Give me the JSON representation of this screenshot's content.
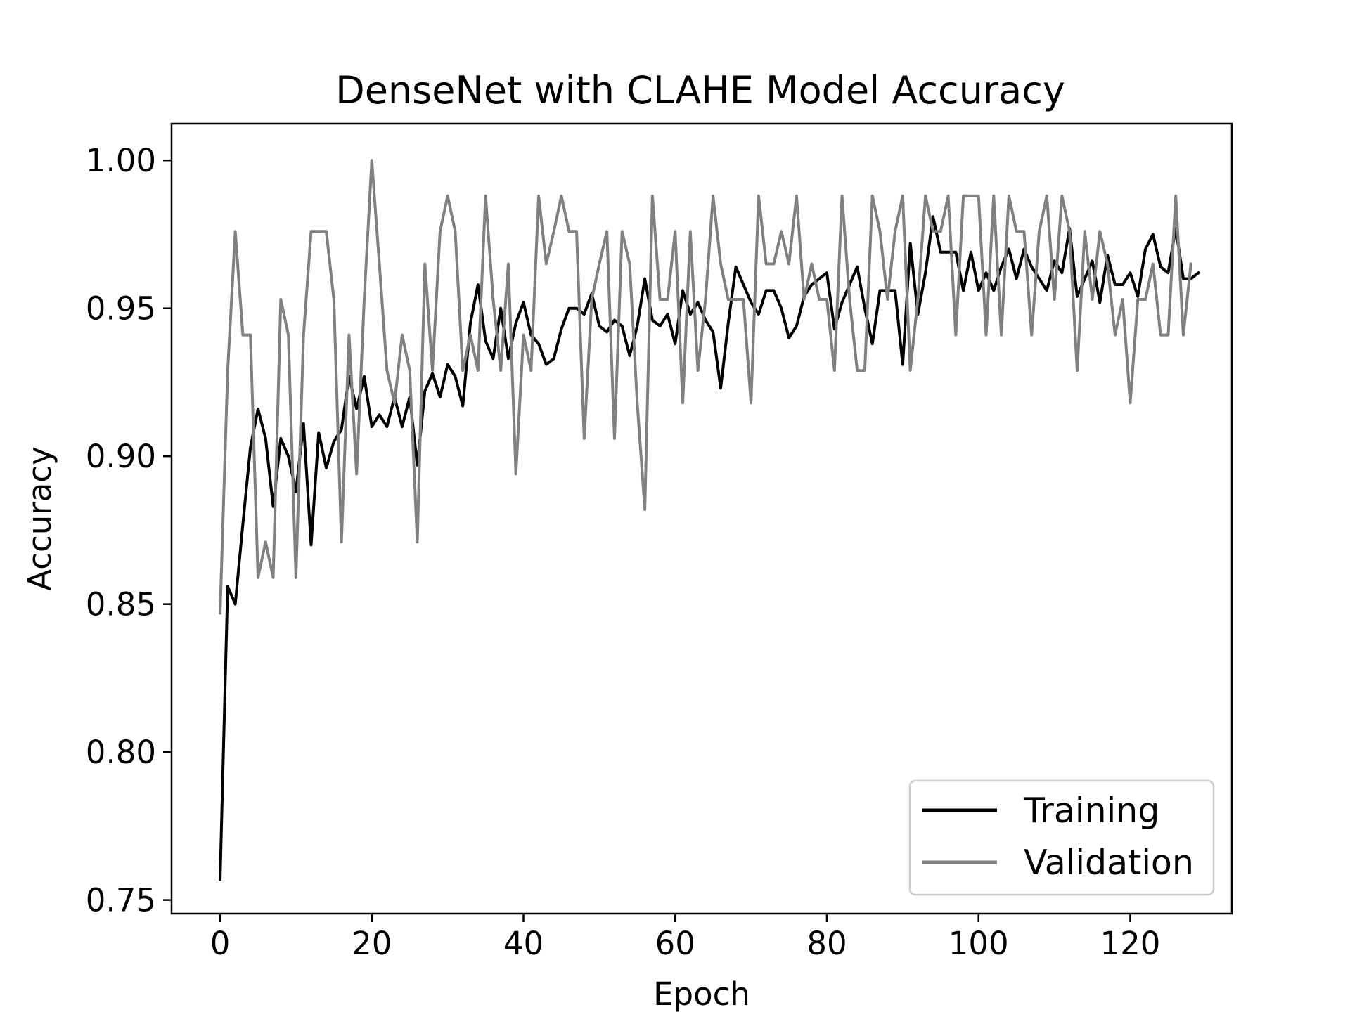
{
  "chart_data": {
    "type": "line",
    "title": "DenseNet with CLAHE Model Accuracy",
    "xlabel": "Epoch",
    "ylabel": "Accuracy",
    "xlim": [
      -6.4,
      133.4
    ],
    "ylim": [
      0.7454,
      1.0124
    ],
    "xticks": [
      0,
      20,
      40,
      60,
      80,
      100,
      120
    ],
    "yticks": [
      0.75,
      0.8,
      0.85,
      0.9,
      0.95,
      1.0
    ],
    "xtick_labels": [
      "0",
      "20",
      "40",
      "60",
      "80",
      "100",
      "120"
    ],
    "ytick_labels": [
      "0.75",
      "0.80",
      "0.85",
      "0.90",
      "0.95",
      "1.00"
    ],
    "grid": false,
    "legend_position": "lower-right",
    "series": [
      {
        "name": "Training",
        "color": "#000000",
        "values": [
          0.757,
          0.856,
          0.85,
          0.877,
          0.903,
          0.916,
          0.906,
          0.883,
          0.906,
          0.9,
          0.888,
          0.911,
          0.87,
          0.908,
          0.896,
          0.905,
          0.909,
          0.927,
          0.916,
          0.927,
          0.91,
          0.914,
          0.91,
          0.92,
          0.91,
          0.92,
          0.897,
          0.922,
          0.928,
          0.92,
          0.931,
          0.927,
          0.917,
          0.945,
          0.958,
          0.939,
          0.933,
          0.95,
          0.933,
          0.945,
          0.952,
          0.941,
          0.938,
          0.931,
          0.933,
          0.943,
          0.95,
          0.95,
          0.948,
          0.955,
          0.944,
          0.942,
          0.946,
          0.944,
          0.934,
          0.944,
          0.96,
          0.946,
          0.944,
          0.948,
          0.938,
          0.956,
          0.948,
          0.952,
          0.946,
          0.942,
          0.923,
          0.945,
          0.964,
          0.958,
          0.952,
          0.948,
          0.956,
          0.956,
          0.95,
          0.94,
          0.944,
          0.954,
          0.958,
          0.96,
          0.962,
          0.943,
          0.952,
          0.958,
          0.964,
          0.95,
          0.938,
          0.956,
          0.956,
          0.956,
          0.931,
          0.972,
          0.948,
          0.962,
          0.981,
          0.969,
          0.969,
          0.969,
          0.956,
          0.969,
          0.956,
          0.962,
          0.956,
          0.964,
          0.97,
          0.96,
          0.97,
          0.964,
          0.96,
          0.956,
          0.966,
          0.962,
          0.977,
          0.954,
          0.96,
          0.966,
          0.952,
          0.968,
          0.958,
          0.958,
          0.962,
          0.954,
          0.97,
          0.975,
          0.964,
          0.962,
          0.977,
          0.96,
          0.96,
          0.962
        ]
      },
      {
        "name": "Validation",
        "color": "#808080",
        "values": [
          0.847,
          0.929,
          0.976,
          0.941,
          0.941,
          0.859,
          0.871,
          0.859,
          0.953,
          0.941,
          0.859,
          0.941,
          0.976,
          0.976,
          0.976,
          0.953,
          0.871,
          0.941,
          0.894,
          0.953,
          1.0,
          0.965,
          0.929,
          0.918,
          0.941,
          0.929,
          0.871,
          0.965,
          0.929,
          0.976,
          0.988,
          0.976,
          0.929,
          0.941,
          0.929,
          0.988,
          0.953,
          0.929,
          0.965,
          0.894,
          0.941,
          0.929,
          0.988,
          0.965,
          0.976,
          0.988,
          0.976,
          0.976,
          0.906,
          0.953,
          0.965,
          0.976,
          0.906,
          0.976,
          0.965,
          0.918,
          0.882,
          0.988,
          0.953,
          0.953,
          0.976,
          0.918,
          0.976,
          0.929,
          0.953,
          0.988,
          0.965,
          0.953,
          0.953,
          0.953,
          0.918,
          0.988,
          0.965,
          0.965,
          0.976,
          0.965,
          0.988,
          0.953,
          0.965,
          0.953,
          0.953,
          0.929,
          0.988,
          0.953,
          0.929,
          0.929,
          0.988,
          0.976,
          0.953,
          0.976,
          0.988,
          0.929,
          0.953,
          0.988,
          0.976,
          0.976,
          0.988,
          0.941,
          0.988,
          0.988,
          0.988,
          0.941,
          0.988,
          0.941,
          0.988,
          0.976,
          0.976,
          0.941,
          0.976,
          0.988,
          0.953,
          0.988,
          0.976,
          0.929,
          0.976,
          0.953,
          0.976,
          0.965,
          0.941,
          0.953,
          0.918,
          0.953,
          0.953,
          0.965,
          0.941,
          0.941,
          0.988,
          0.941,
          0.965
        ]
      }
    ]
  }
}
